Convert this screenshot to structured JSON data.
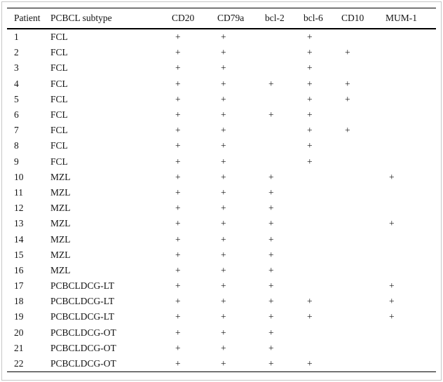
{
  "table": {
    "columns": [
      "Patient",
      "PCBCL subtype",
      "CD20",
      "CD79a",
      "bcl-2",
      "bcl-6",
      "CD10",
      "MUM-1"
    ],
    "positive_symbol": "+",
    "rows": [
      [
        "1",
        "FCL",
        "+",
        "+",
        "",
        "+",
        "",
        ""
      ],
      [
        "2",
        "FCL",
        "+",
        "+",
        "",
        "+",
        "+",
        ""
      ],
      [
        "3",
        "FCL",
        "+",
        "+",
        "",
        "+",
        "",
        ""
      ],
      [
        "4",
        "FCL",
        "+",
        "+",
        "+",
        "+",
        "+",
        ""
      ],
      [
        "5",
        "FCL",
        "+",
        "+",
        "",
        "+",
        "+",
        ""
      ],
      [
        "6",
        "FCL",
        "+",
        "+",
        "+",
        "+",
        "",
        ""
      ],
      [
        "7",
        "FCL",
        "+",
        "+",
        "",
        "+",
        "+",
        ""
      ],
      [
        "8",
        "FCL",
        "+",
        "+",
        "",
        "+",
        "",
        ""
      ],
      [
        "9",
        "FCL",
        "+",
        "+",
        "",
        "+",
        "",
        ""
      ],
      [
        "10",
        "MZL",
        "+",
        "+",
        "+",
        "",
        "",
        "+"
      ],
      [
        "11",
        "MZL",
        "+",
        "+",
        "+",
        "",
        "",
        ""
      ],
      [
        "12",
        "MZL",
        "+",
        "+",
        "+",
        "",
        "",
        ""
      ],
      [
        "13",
        "MZL",
        "+",
        "+",
        "+",
        "",
        "",
        "+"
      ],
      [
        "14",
        "MZL",
        "+",
        "+",
        "+",
        "",
        "",
        ""
      ],
      [
        "15",
        "MZL",
        "+",
        "+",
        "+",
        "",
        "",
        ""
      ],
      [
        "16",
        "MZL",
        "+",
        "+",
        "+",
        "",
        "",
        ""
      ],
      [
        "17",
        "PCBCLDCG-LT",
        "+",
        "+",
        "+",
        "",
        "",
        "+"
      ],
      [
        "18",
        "PCBCLDCG-LT",
        "+",
        "+",
        "+",
        "+",
        "",
        "+"
      ],
      [
        "19",
        "PCBCLDCG-LT",
        "+",
        "+",
        "+",
        "+",
        "",
        "+"
      ],
      [
        "20",
        "PCBCLDCG-OT",
        "+",
        "+",
        "+",
        "",
        "",
        ""
      ],
      [
        "21",
        "PCBCLDCG-OT",
        "+",
        "+",
        "+",
        "",
        "",
        ""
      ],
      [
        "22",
        "PCBCLDCG-OT",
        "+",
        "+",
        "+",
        "+",
        "",
        ""
      ]
    ]
  },
  "colors": {
    "background": "#ffffff",
    "text": "#131313",
    "rule": "#000000",
    "frame": "#c6c6c6"
  }
}
